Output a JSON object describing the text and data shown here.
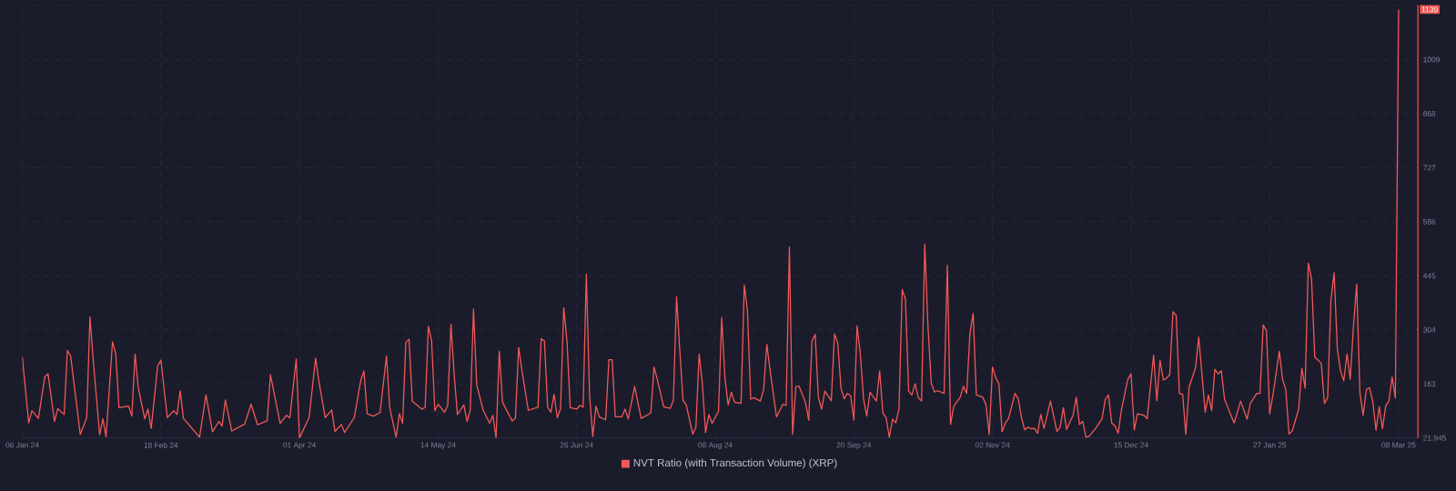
{
  "chart_data": {
    "type": "line",
    "x": [
      "2024-01-06",
      "2024-01-08",
      "2024-01-09",
      "2024-01-11",
      "2024-01-13",
      "2024-01-14",
      "2024-01-16",
      "2024-01-17",
      "2024-01-19",
      "2024-01-20",
      "2024-01-21",
      "2024-01-24",
      "2024-01-26",
      "2024-01-27",
      "2024-01-28",
      "2024-01-30",
      "2024-01-31",
      "2024-02-01",
      "2024-02-03",
      "2024-02-04",
      "2024-02-05",
      "2024-02-08",
      "2024-02-09",
      "2024-02-10",
      "2024-02-11",
      "2024-02-13",
      "2024-02-14",
      "2024-02-15",
      "2024-02-17",
      "2024-02-18",
      "2024-02-20",
      "2024-02-22",
      "2024-02-23",
      "2024-02-24",
      "2024-02-25",
      "2024-03-01",
      "2024-03-03",
      "2024-03-05",
      "2024-03-07",
      "2024-03-08",
      "2024-03-09",
      "2024-03-11",
      "2024-03-15",
      "2024-03-17",
      "2024-03-19",
      "2024-03-22",
      "2024-03-23",
      "2024-03-24",
      "2024-03-26",
      "2024-03-28",
      "2024-03-29",
      "2024-03-31",
      "2024-04-01",
      "2024-04-04",
      "2024-04-06",
      "2024-04-07",
      "2024-04-09",
      "2024-04-11",
      "2024-04-12",
      "2024-04-14",
      "2024-04-15",
      "2024-04-18",
      "2024-04-20",
      "2024-04-21",
      "2024-04-22",
      "2024-04-24",
      "2024-04-26",
      "2024-04-28",
      "2024-04-29",
      "2024-05-01",
      "2024-05-02",
      "2024-05-03",
      "2024-05-04",
      "2024-05-05",
      "2024-05-06",
      "2024-05-09",
      "2024-05-10",
      "2024-05-11",
      "2024-05-12",
      "2024-05-13",
      "2024-05-14",
      "2024-05-16",
      "2024-05-17",
      "2024-05-18",
      "2024-05-19",
      "2024-05-20",
      "2024-05-22",
      "2024-05-23",
      "2024-05-24",
      "2024-05-25",
      "2024-05-26",
      "2024-05-28",
      "2024-05-30",
      "2024-05-31",
      "2024-06-01",
      "2024-06-02",
      "2024-06-03",
      "2024-06-06",
      "2024-06-07",
      "2024-06-08",
      "2024-06-09",
      "2024-06-11",
      "2024-06-14",
      "2024-06-15",
      "2024-06-16",
      "2024-06-17",
      "2024-06-18",
      "2024-06-19",
      "2024-06-20",
      "2024-06-21",
      "2024-06-22",
      "2024-06-23",
      "2024-06-24",
      "2024-06-26",
      "2024-06-27",
      "2024-06-28",
      "2024-06-29",
      "2024-06-30",
      "2024-07-01",
      "2024-07-02",
      "2024-07-03",
      "2024-07-05",
      "2024-07-06",
      "2024-07-07",
      "2024-07-08",
      "2024-07-10",
      "2024-07-11",
      "2024-07-12",
      "2024-07-14",
      "2024-07-16",
      "2024-07-19",
      "2024-07-20",
      "2024-07-21",
      "2024-07-23",
      "2024-07-25",
      "2024-07-26",
      "2024-07-27",
      "2024-07-28",
      "2024-07-29",
      "2024-07-30",
      "2024-08-01",
      "2024-08-02",
      "2024-08-03",
      "2024-08-04",
      "2024-08-05",
      "2024-08-06",
      "2024-08-07",
      "2024-08-09",
      "2024-08-10",
      "2024-08-11",
      "2024-08-12",
      "2024-08-13",
      "2024-08-14",
      "2024-08-16",
      "2024-08-17",
      "2024-08-18",
      "2024-08-19",
      "2024-08-20",
      "2024-08-22",
      "2024-08-23",
      "2024-08-24",
      "2024-08-25",
      "2024-08-27",
      "2024-08-29",
      "2024-08-30",
      "2024-08-31",
      "2024-09-01",
      "2024-09-02",
      "2024-09-03",
      "2024-09-05",
      "2024-09-06",
      "2024-09-07",
      "2024-09-08",
      "2024-09-09",
      "2024-09-10",
      "2024-09-11",
      "2024-09-13",
      "2024-09-14",
      "2024-09-15",
      "2024-09-16",
      "2024-09-17",
      "2024-09-18",
      "2024-09-19",
      "2024-09-20",
      "2024-09-21",
      "2024-09-22",
      "2024-09-23",
      "2024-09-24",
      "2024-09-25",
      "2024-09-27",
      "2024-09-28",
      "2024-09-29",
      "2024-09-30",
      "2024-10-01",
      "2024-10-02",
      "2024-10-03",
      "2024-10-04",
      "2024-10-05",
      "2024-10-06",
      "2024-10-07",
      "2024-10-08",
      "2024-10-09",
      "2024-10-10",
      "2024-10-11",
      "2024-10-12",
      "2024-10-13",
      "2024-10-14",
      "2024-10-15",
      "2024-10-16",
      "2024-10-18",
      "2024-10-19",
      "2024-10-20",
      "2024-10-21",
      "2024-10-23",
      "2024-10-24",
      "2024-10-25",
      "2024-10-26",
      "2024-10-27",
      "2024-10-28",
      "2024-10-30",
      "2024-10-31",
      "2024-11-01",
      "2024-11-02",
      "2024-11-03",
      "2024-11-04",
      "2024-11-05",
      "2024-11-06",
      "2024-11-07",
      "2024-11-09",
      "2024-11-10",
      "2024-11-11",
      "2024-11-12",
      "2024-11-13",
      "2024-11-14",
      "2024-11-15",
      "2024-11-16",
      "2024-11-17",
      "2024-11-18",
      "2024-11-20",
      "2024-11-22",
      "2024-11-23",
      "2024-11-24",
      "2024-11-25",
      "2024-11-27",
      "2024-11-28",
      "2024-11-29",
      "2024-11-30",
      "2024-12-01",
      "2024-12-02",
      "2024-12-04",
      "2024-12-06",
      "2024-12-07",
      "2024-12-08",
      "2024-12-09",
      "2024-12-10",
      "2024-12-11",
      "2024-12-12",
      "2024-12-14",
      "2024-12-15",
      "2024-12-16",
      "2024-12-17",
      "2024-12-19",
      "2024-12-20",
      "2024-12-22",
      "2024-12-23",
      "2024-12-24",
      "2024-12-25",
      "2024-12-26",
      "2024-12-27",
      "2024-12-28",
      "2024-12-29",
      "2024-12-30",
      "2024-12-31",
      "2025-01-01",
      "2025-01-02",
      "2025-01-04",
      "2025-01-05",
      "2025-01-06",
      "2025-01-07",
      "2025-01-08",
      "2025-01-09",
      "2025-01-10",
      "2025-01-11",
      "2025-01-12",
      "2025-01-13",
      "2025-01-15",
      "2025-01-16",
      "2025-01-18",
      "2025-01-20",
      "2025-01-21",
      "2025-01-23",
      "2025-01-24",
      "2025-01-25",
      "2025-01-26",
      "2025-01-27",
      "2025-01-28",
      "2025-01-30",
      "2025-01-31",
      "2025-02-01",
      "2025-02-02",
      "2025-02-03",
      "2025-02-05",
      "2025-02-06",
      "2025-02-07",
      "2025-02-08",
      "2025-02-09",
      "2025-02-10",
      "2025-02-12",
      "2025-02-13",
      "2025-02-14",
      "2025-02-15",
      "2025-02-16",
      "2025-02-17",
      "2025-02-18",
      "2025-02-19",
      "2025-02-20",
      "2025-02-21",
      "2025-02-22",
      "2025-02-23",
      "2025-02-24",
      "2025-02-25",
      "2025-02-26",
      "2025-02-27",
      "2025-02-28",
      "2025-03-01",
      "2025-03-02",
      "2025-03-03",
      "2025-03-04",
      "2025-03-05",
      "2025-03-06",
      "2025-03-07",
      "2025-03-08"
    ],
    "series": [
      {
        "name": "NVT Ratio (with Transaction Volume) (XRP)",
        "color": "#f25858",
        "values": [
          234,
          61,
          93,
          73,
          182,
          189,
          65,
          98,
          83,
          250,
          236,
          31,
          75,
          338,
          226,
          30,
          72,
          25,
          273,
          242,
          101,
          105,
          79,
          241,
          152,
          72,
          97,
          47,
          209,
          225,
          75,
          93,
          83,
          145,
          73,
          24,
          134,
          38,
          65,
          53,
          121,
          40,
          58,
          110,
          56,
          67,
          187,
          145,
          60,
          81,
          74,
          228,
          22,
          75,
          230,
          171,
          75,
          95,
          39,
          57,
          36,
          75,
          171,
          197,
          85,
          79,
          88,
          236,
          101,
          24,
          85,
          60,
          271,
          279,
          118,
          97,
          102,
          313,
          275,
          93,
          110,
          89,
          107,
          318,
          187,
          83,
          108,
          65,
          95,
          358,
          160,
          94,
          60,
          81,
          22,
          248,
          115,
          66,
          73,
          258,
          199,
          94,
          102,
          281,
          275,
          102,
          89,
          136,
          75,
          98,
          362,
          274,
          101,
          97,
          107,
          102,
          449,
          132,
          26,
          105,
          77,
          69,
          226,
          226,
          77,
          77,
          97,
          72,
          156,
          73,
          87,
          207,
          175,
          103,
          99,
          120,
          390,
          250,
          120,
          108,
          32,
          50,
          241,
          163,
          36,
          83,
          60,
          91,
          336,
          179,
          108,
          141,
          115,
          112,
          421,
          352,
          123,
          127,
          118,
          148,
          266,
          199,
          77,
          110,
          107,
          520,
          31,
          156,
          157,
          114,
          68,
          275,
          292,
          128,
          97,
          144,
          119,
          293,
          270,
          152,
          124,
          138,
          132,
          68,
          314,
          242,
          124,
          79,
          141,
          118,
          197,
          87,
          75,
          23,
          71,
          61,
          98,
          409,
          384,
          144,
          134,
          163,
          127,
          118,
          528,
          313,
          165,
          142,
          145,
          138,
          472,
          57,
          105,
          128,
          157,
          138,
          293,
          347,
          134,
          128,
          108,
          31,
          207,
          179,
          163,
          38,
          61,
          73,
          138,
          124,
          75,
          43,
          50,
          46,
          47,
          34,
          83,
          47,
          118,
          39,
          50,
          101,
          44,
          81,
          128,
          57,
          65,
          24,
          26,
          47,
          72,
          122,
          134,
          61,
          53,
          34,
          94,
          175,
          189,
          43,
          85,
          81,
          72,
          238,
          119,
          224,
          173,
          178,
          187,
          351,
          342,
          138,
          136,
          31,
          154,
          205,
          285,
          187,
          89,
          134,
          93,
          201,
          189,
          197,
          123,
          81,
          61,
          118,
          71,
          112,
          138,
          138,
          317,
          301,
          85,
          132,
          248,
          175,
          148,
          32,
          40,
          97,
          204,
          152,
          478,
          437,
          233,
          217,
          112,
          127,
          380,
          453,
          254,
          197,
          171,
          241,
          175,
          313,
          423,
          140,
          81,
          148,
          153,
          116,
          42,
          103,
          46,
          105,
          118,
          181,
          126,
          1139
        ]
      }
    ],
    "xlim": [
      "2024-01-06",
      "2025-03-14"
    ],
    "xticks": [
      {
        "value": "2024-01-06",
        "label": "06 Jan 24"
      },
      {
        "value": "2024-02-18",
        "label": "18 Feb 24"
      },
      {
        "value": "2024-04-01",
        "label": "01 Apr 24"
      },
      {
        "value": "2024-05-14",
        "label": "14 May 24"
      },
      {
        "value": "2024-06-26",
        "label": "26 Jun 24"
      },
      {
        "value": "2024-08-08",
        "label": "08 Aug 24"
      },
      {
        "value": "2024-09-20",
        "label": "20 Sep 24"
      },
      {
        "value": "2024-11-02",
        "label": "02 Nov 24"
      },
      {
        "value": "2024-12-15",
        "label": "15 Dec 24"
      },
      {
        "value": "2025-01-27",
        "label": "27 Jan 25"
      },
      {
        "value": "2025-03-08",
        "label": "08 Mar 25"
      }
    ],
    "ylim": [
      21.945,
      1151
    ],
    "yticks": [
      21.945,
      163,
      304,
      445,
      586,
      727,
      868,
      1009,
      {
        "value": 1151,
        "label": null
      }
    ],
    "grid": true,
    "legend": "bottom",
    "annotations": [
      "1139"
    ]
  }
}
